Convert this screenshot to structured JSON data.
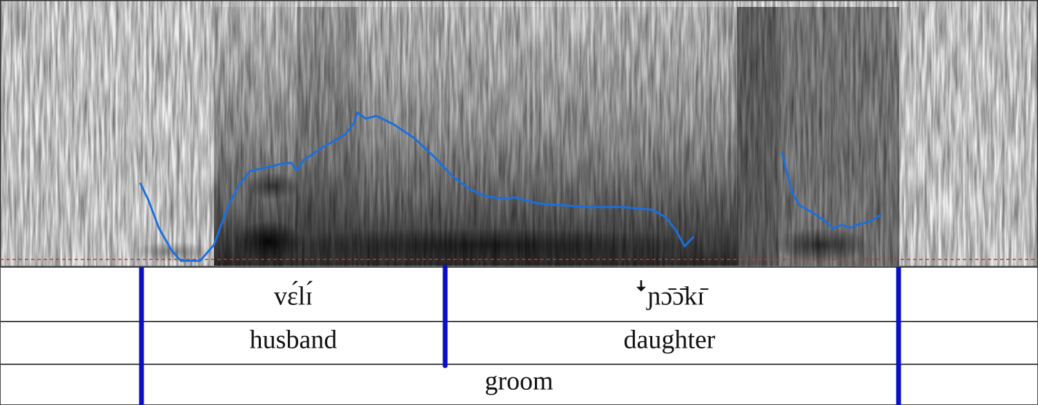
{
  "tiers": [
    {
      "intervals": [
        "vɛ́lɪ́",
        "ꜜɲɔ̄ɔ̄kɪ̄"
      ]
    },
    {
      "intervals": [
        "husband",
        "daughter"
      ]
    },
    {
      "intervals": [
        "groom"
      ]
    }
  ]
}
